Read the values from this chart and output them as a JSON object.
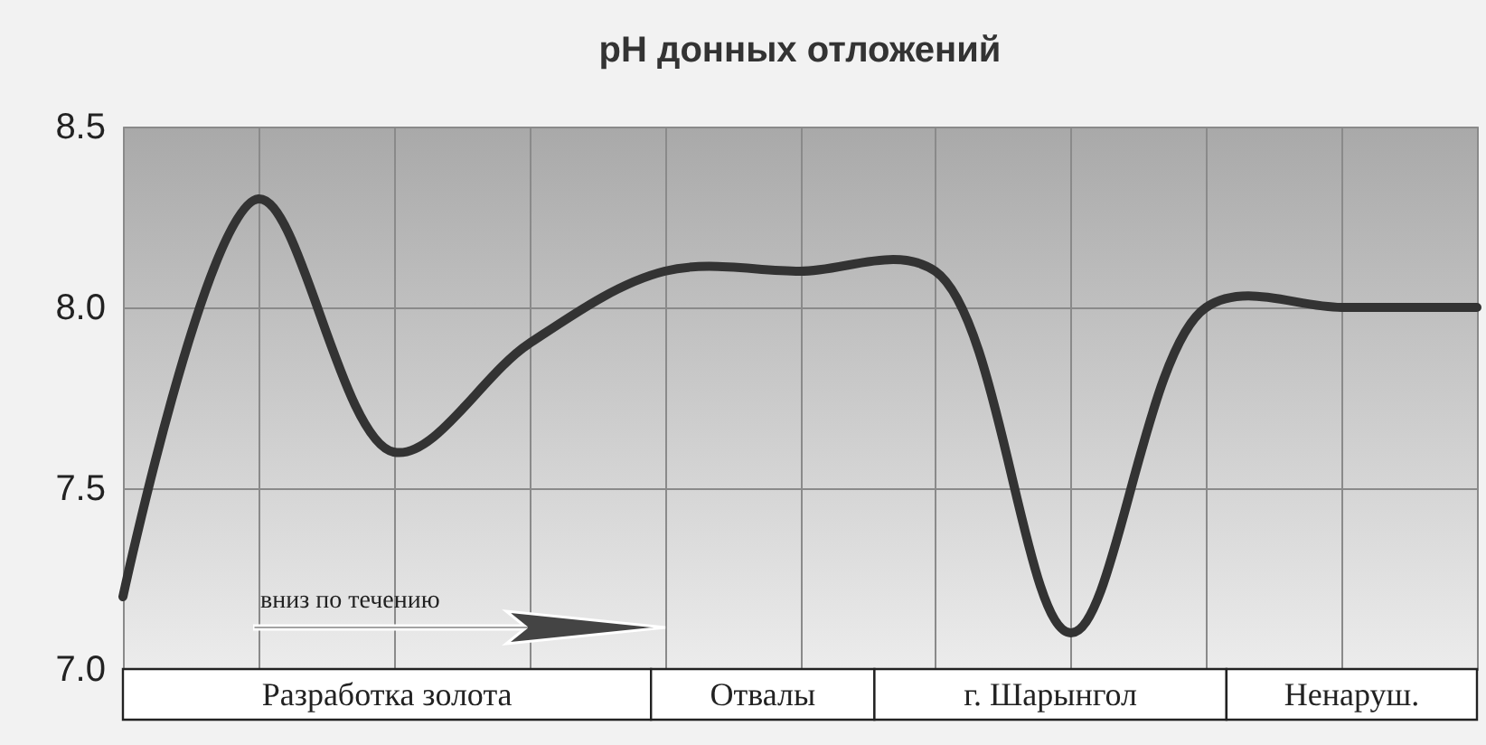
{
  "chart_data": {
    "type": "line",
    "title": "pH донных отложений",
    "categories": [
      null,
      null,
      null,
      null,
      null,
      null,
      null,
      null,
      null,
      null,
      null
    ],
    "series": [
      {
        "color": "#333333",
        "values": [
          7.2,
          8.3,
          7.6,
          7.9,
          8.1,
          8.1,
          8.1,
          7.1,
          8.0,
          8.0,
          8.0
        ]
      }
    ],
    "ylim": [
      7.0,
      8.5
    ],
    "yticks": [
      {
        "value": 7.0,
        "label": "7.0"
      },
      {
        "value": 7.5,
        "label": "7.5"
      },
      {
        "value": 8.0,
        "label": "8.0"
      },
      {
        "value": 8.5,
        "label": "8.5"
      }
    ],
    "grid": true,
    "tick_labels": "y",
    "annotations": [
      "Разработка золота",
      "Отвалы",
      "г. Шарынгол",
      "Ненаруш.",
      "вниз по течению"
    ]
  }
}
